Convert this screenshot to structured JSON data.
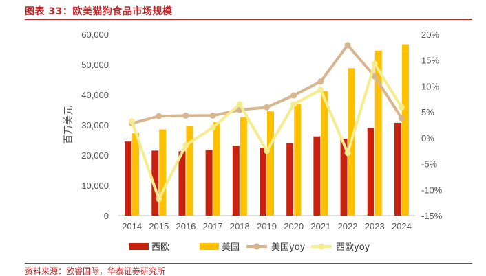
{
  "header": {
    "title": "图表 33：欧美猫狗食品市场规模"
  },
  "footer": {
    "source": "资料来源：欧睿国际，华泰证券研究所"
  },
  "chart_data": {
    "type": "bar",
    "categories": [
      "2014",
      "2015",
      "2016",
      "2017",
      "2018",
      "2019",
      "2020",
      "2021",
      "2022",
      "2023",
      "2024"
    ],
    "series": [
      {
        "name": "西欧",
        "type": "bar",
        "axis": "left",
        "color": "#c8220e",
        "values": [
          24500,
          21500,
          21300,
          21700,
          23100,
          22500,
          24000,
          26200,
          25400,
          29000,
          30700
        ]
      },
      {
        "name": "美国",
        "type": "bar",
        "axis": "left",
        "color": "#ffc000",
        "values": [
          27300,
          28500,
          29700,
          30900,
          32600,
          34500,
          36800,
          41200,
          48800,
          54600,
          56700
        ]
      },
      {
        "name": "美国yoy",
        "type": "line",
        "axis": "right",
        "color": "#d6b58f",
        "values": [
          2.8,
          4.2,
          4.3,
          4.3,
          5.4,
          5.9,
          8.2,
          10.9,
          17.9,
          11.9,
          3.8
        ]
      },
      {
        "name": "西欧yoy",
        "type": "line",
        "axis": "right",
        "color": "#f5ec8e",
        "values": [
          3.2,
          -11.8,
          -1.4,
          2.0,
          6.5,
          -2.5,
          6.5,
          9.3,
          -2.9,
          14.3,
          5.9
        ]
      }
    ],
    "ylabel": "百万美元",
    "ylim": [
      0,
      60000
    ],
    "yticks": [
      "0",
      "10,000",
      "20,000",
      "30,000",
      "40,000",
      "50,000",
      "60,000"
    ],
    "y2lim": [
      -15,
      20
    ],
    "y2ticks": [
      "-15%",
      "-10%",
      "-5%",
      "0%",
      "5%",
      "10%",
      "15%",
      "20%"
    ],
    "legend_position": "bottom",
    "grid": false
  }
}
